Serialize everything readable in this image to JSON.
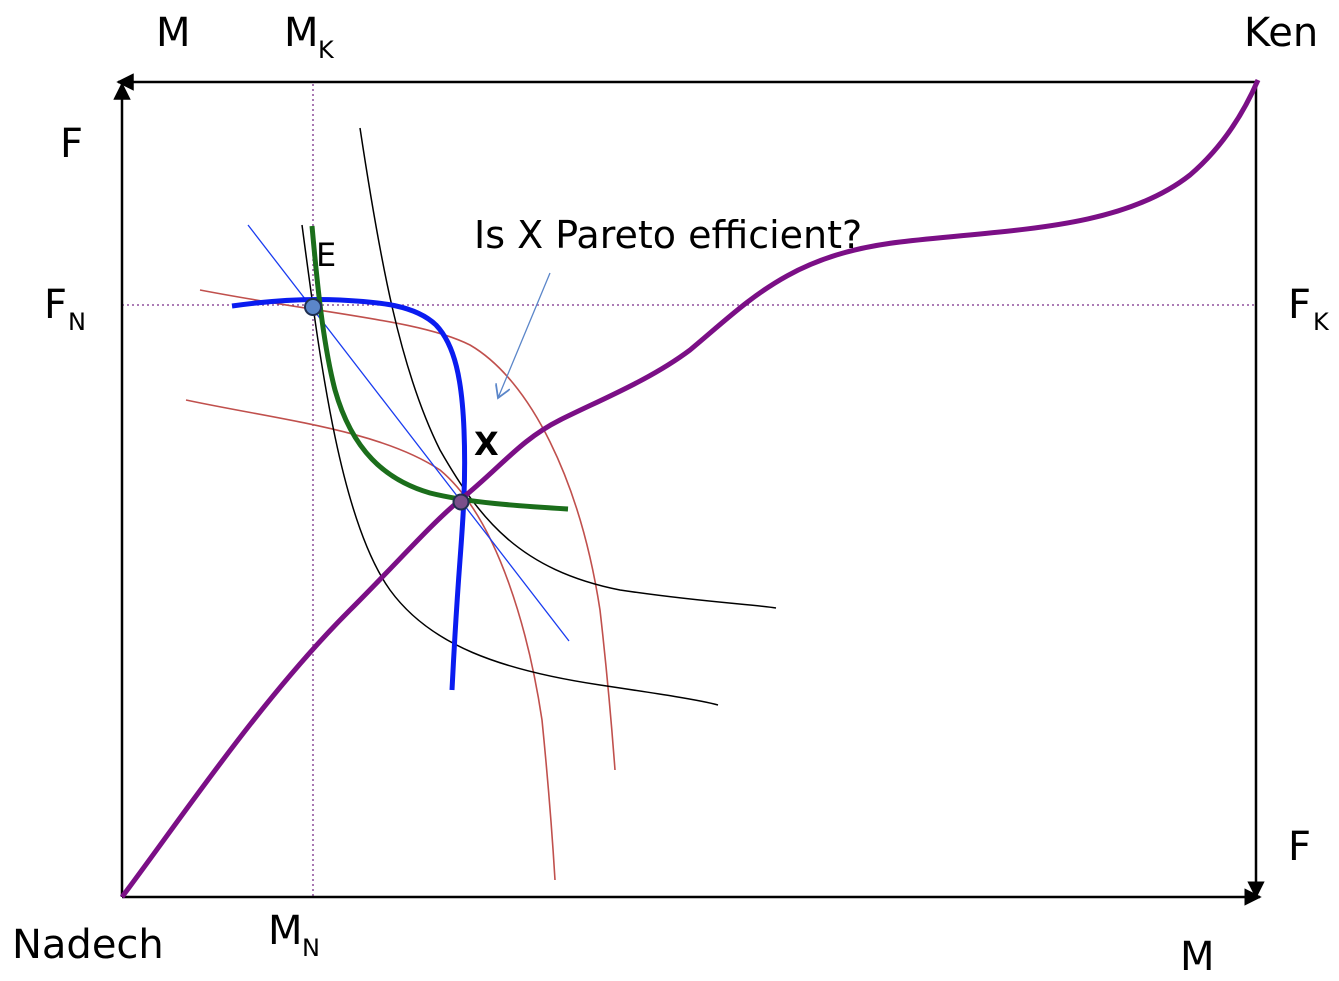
{
  "labels": {
    "origin_nadech": "Nadech",
    "origin_ken": "Ken",
    "top_m": "M",
    "mk_main": "M",
    "mk_sub": "K",
    "left_f": "F",
    "fn_main": "F",
    "fn_sub": "N",
    "fk_main": "F",
    "fk_sub": "K",
    "right_f": "F",
    "mn_main": "M",
    "mn_sub": "N",
    "bottom_m": "M",
    "point_e": "E",
    "point_x": "X",
    "question": "Is X Pareto efficient?"
  },
  "colors": {
    "axes": "#000000",
    "contract_curve": "#7b0f86",
    "indifference_nadech": "#000000",
    "indifference_ken": "#c0504d",
    "offer_curve_nadech": "#0a1cf0",
    "offer_curve_ken": "#1b6e1b",
    "budget_line": "#1a3cf0",
    "endowment_guides": "#7b2f8a",
    "points": "#5b86c9"
  }
}
